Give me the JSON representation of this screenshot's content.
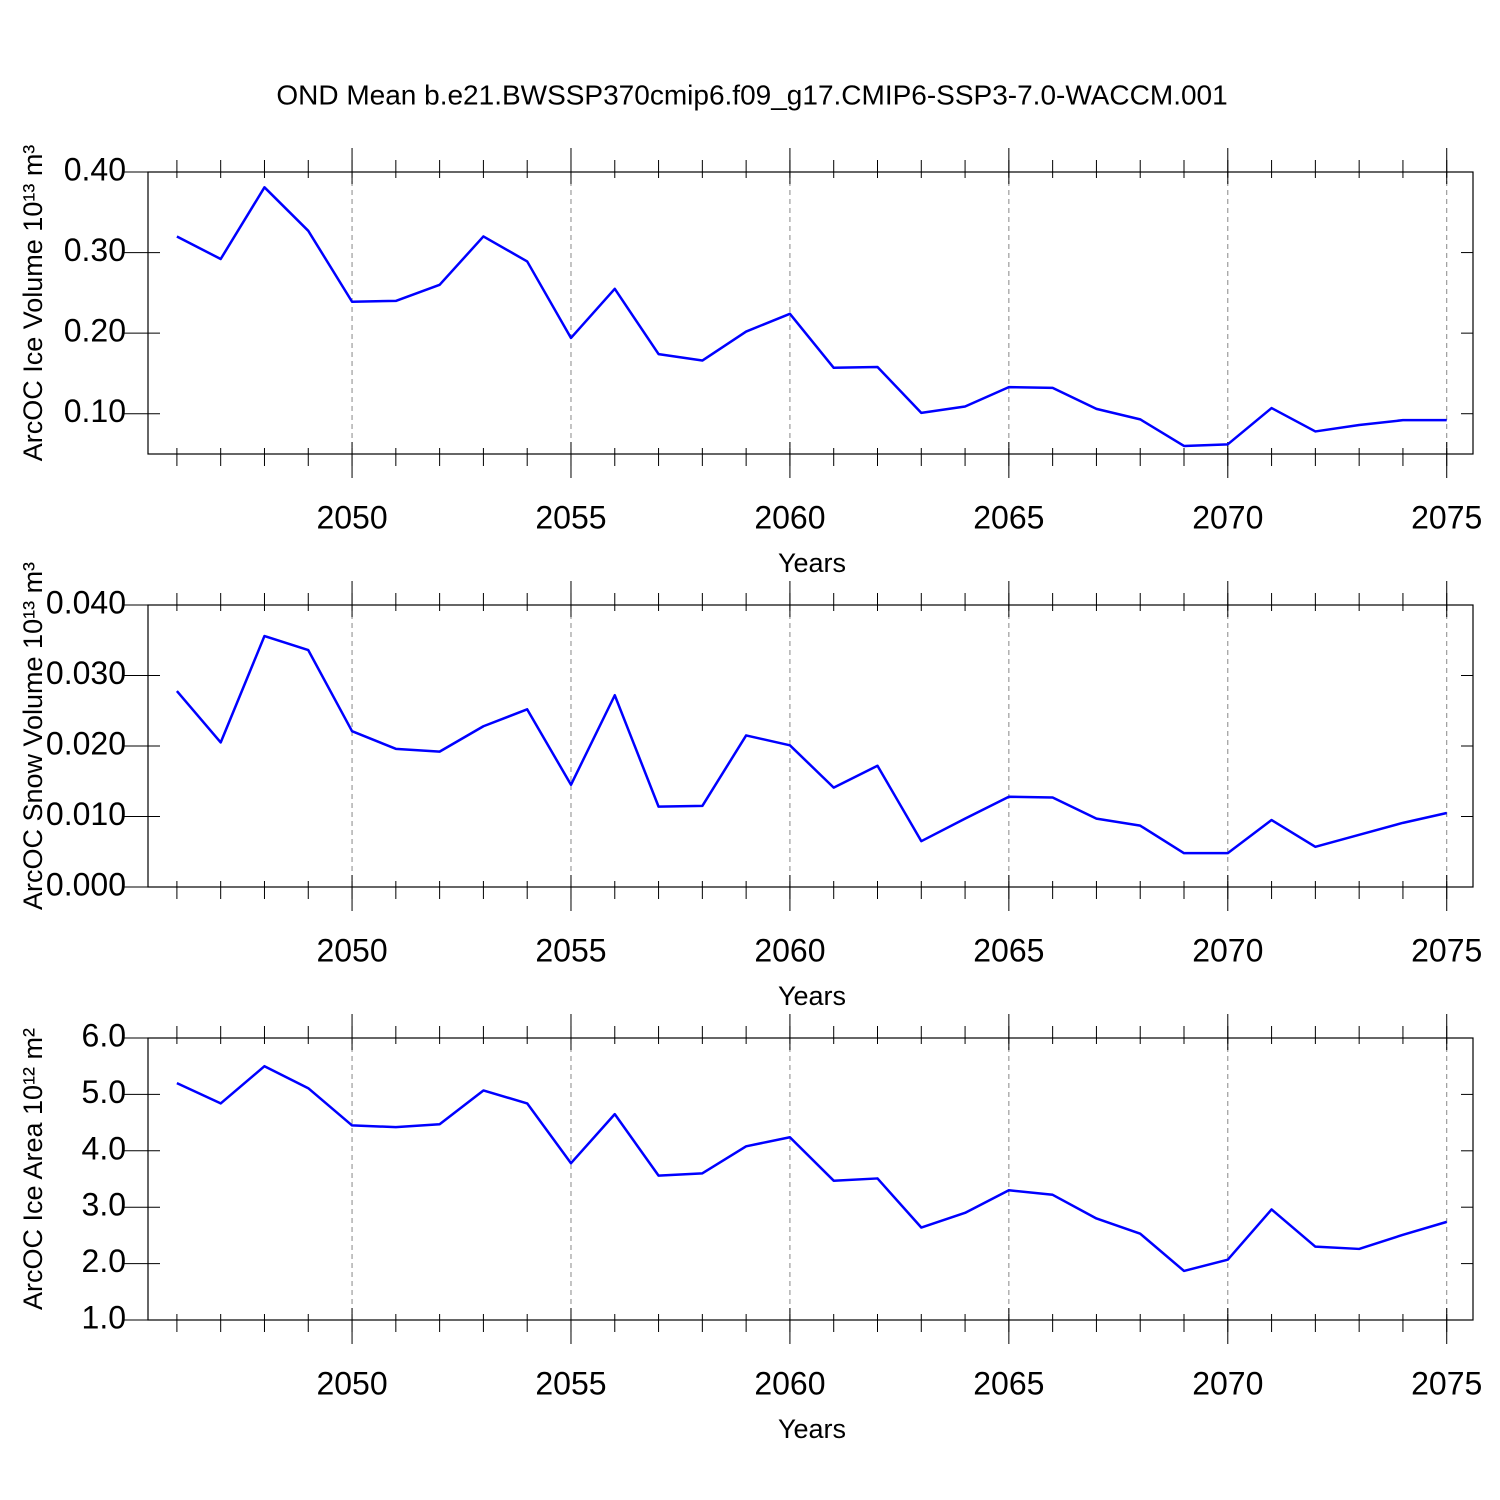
{
  "title": "OND Mean b.e21.BWSSP370cmip6.f09_g17.CMIP6-SSP3-7.0-WACCM.001",
  "chart_data": [
    {
      "type": "line",
      "ylabel": "ArcOC Ice Volume 10¹³ m³",
      "xlabel": "Years",
      "x": [
        2046,
        2047,
        2048,
        2049,
        2050,
        2051,
        2052,
        2053,
        2054,
        2055,
        2056,
        2057,
        2058,
        2059,
        2060,
        2061,
        2062,
        2063,
        2064,
        2065,
        2066,
        2067,
        2068,
        2069,
        2070,
        2071,
        2072,
        2073,
        2074,
        2075
      ],
      "values": [
        0.32,
        0.292,
        0.381,
        0.327,
        0.239,
        0.24,
        0.26,
        0.32,
        0.289,
        0.194,
        0.255,
        0.174,
        0.166,
        0.202,
        0.224,
        0.157,
        0.158,
        0.101,
        0.109,
        0.133,
        0.132,
        0.106,
        0.093,
        0.06,
        0.062,
        0.107,
        0.078,
        0.086,
        0.092,
        0.092
      ],
      "color": "#0000ff",
      "xlim": [
        2045.34,
        2075.6
      ],
      "ylim": [
        0.05,
        0.4
      ],
      "xticks": [
        2050,
        2055,
        2060,
        2065,
        2070,
        2075
      ],
      "yticks": [
        {
          "value": 0.1,
          "label": "0.10"
        },
        {
          "value": 0.2,
          "label": "0.20"
        },
        {
          "value": 0.3,
          "label": "0.30"
        },
        {
          "value": 0.4,
          "label": "0.40"
        }
      ],
      "grid": true
    },
    {
      "type": "line",
      "ylabel": "ArcOC Snow Volume 10¹³ m³",
      "xlabel": "Years",
      "x": [
        2046,
        2047,
        2048,
        2049,
        2050,
        2051,
        2052,
        2053,
        2054,
        2055,
        2056,
        2057,
        2058,
        2059,
        2060,
        2061,
        2062,
        2063,
        2064,
        2065,
        2066,
        2067,
        2068,
        2069,
        2070,
        2071,
        2072,
        2073,
        2074,
        2075
      ],
      "values": [
        0.0278,
        0.0205,
        0.0356,
        0.0336,
        0.0221,
        0.0196,
        0.0192,
        0.0228,
        0.0252,
        0.0145,
        0.0272,
        0.0114,
        0.0115,
        0.0215,
        0.0201,
        0.0141,
        0.0172,
        0.0065,
        0.0097,
        0.0128,
        0.0127,
        0.0097,
        0.0087,
        0.0048,
        0.0048,
        0.0095,
        0.0057,
        0.0074,
        0.0091,
        0.0105
      ],
      "color": "#0000ff",
      "xlim": [
        2045.34,
        2075.6
      ],
      "ylim": [
        0,
        0.04
      ],
      "xticks": [
        2050,
        2055,
        2060,
        2065,
        2070,
        2075
      ],
      "yticks": [
        {
          "value": 0,
          "label": "0.000"
        },
        {
          "value": 0.01,
          "label": "0.010"
        },
        {
          "value": 0.02,
          "label": "0.020"
        },
        {
          "value": 0.03,
          "label": "0.030"
        },
        {
          "value": 0.04,
          "label": "0.040"
        }
      ],
      "grid": true
    },
    {
      "type": "line",
      "ylabel": "ArcOC Ice Area 10¹² m²",
      "xlabel": "Years",
      "x": [
        2046,
        2047,
        2048,
        2049,
        2050,
        2051,
        2052,
        2053,
        2054,
        2055,
        2056,
        2057,
        2058,
        2059,
        2060,
        2061,
        2062,
        2063,
        2064,
        2065,
        2066,
        2067,
        2068,
        2069,
        2070,
        2071,
        2072,
        2073,
        2074,
        2075
      ],
      "values": [
        5.2,
        4.84,
        5.5,
        5.11,
        4.45,
        4.42,
        4.47,
        5.07,
        4.84,
        3.78,
        4.65,
        3.56,
        3.6,
        4.08,
        4.24,
        3.47,
        3.51,
        2.64,
        2.9,
        3.3,
        3.22,
        2.8,
        2.53,
        1.87,
        2.07,
        2.96,
        2.3,
        2.26,
        2.51,
        2.74
      ],
      "color": "#0000ff",
      "xlim": [
        2045.34,
        2075.6
      ],
      "ylim": [
        1,
        6
      ],
      "xticks": [
        2050,
        2055,
        2060,
        2065,
        2070,
        2075
      ],
      "yticks": [
        {
          "value": 1,
          "label": "1.0"
        },
        {
          "value": 2,
          "label": "2.0"
        },
        {
          "value": 3,
          "label": "3.0"
        },
        {
          "value": 4,
          "label": "4.0"
        },
        {
          "value": 5,
          "label": "5.0"
        },
        {
          "value": 6,
          "label": "6.0"
        }
      ],
      "grid": true
    }
  ]
}
